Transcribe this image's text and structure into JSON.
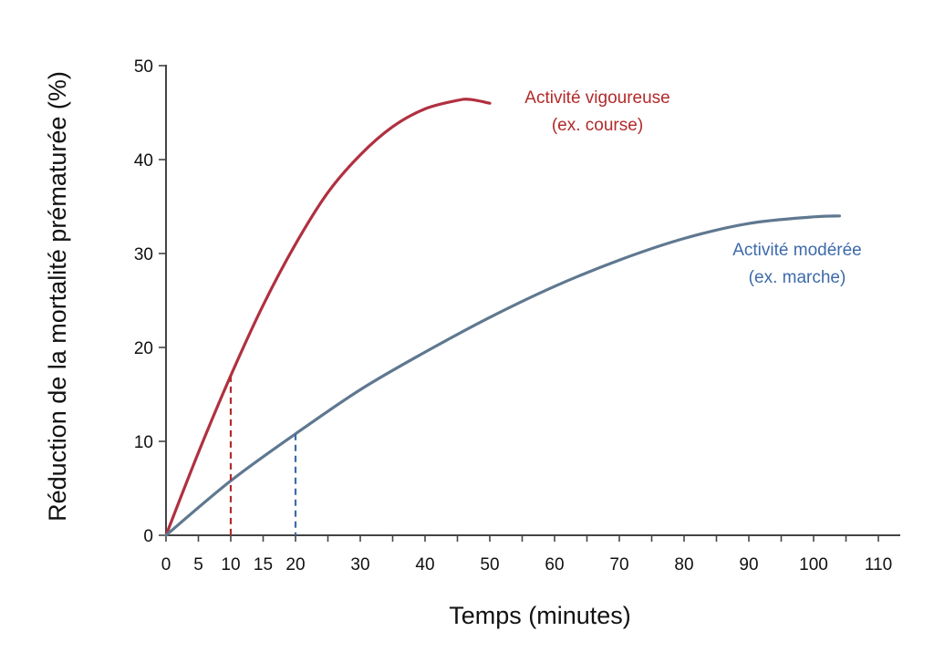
{
  "chart_data": {
    "type": "line",
    "title": "",
    "xlabel": "Temps (minutes)",
    "ylabel": "Réduction de la mortalité prématurée (%)",
    "xlim": [
      0,
      110
    ],
    "ylim": [
      0,
      50
    ],
    "grid": false,
    "x_ticks": [
      0,
      5,
      10,
      15,
      20,
      25,
      30,
      35,
      40,
      45,
      50,
      55,
      60,
      65,
      70,
      75,
      80,
      85,
      90,
      95,
      100,
      105,
      110
    ],
    "x_tick_labels": [
      {
        "value": 0,
        "label": "0"
      },
      {
        "value": 5,
        "label": "5"
      },
      {
        "value": 10,
        "label": "10"
      },
      {
        "value": 15,
        "label": "15"
      },
      {
        "value": 20,
        "label": "20"
      },
      {
        "value": 30,
        "label": "30"
      },
      {
        "value": 40,
        "label": "40"
      },
      {
        "value": 50,
        "label": "50"
      },
      {
        "value": 60,
        "label": "60"
      },
      {
        "value": 70,
        "label": "70"
      },
      {
        "value": 80,
        "label": "80"
      },
      {
        "value": 90,
        "label": "90"
      },
      {
        "value": 100,
        "label": "100"
      },
      {
        "value": 110,
        "label": "110"
      }
    ],
    "y_ticks": [
      {
        "value": 0,
        "label": "0"
      },
      {
        "value": 10,
        "label": "10"
      },
      {
        "value": 20,
        "label": "20"
      },
      {
        "value": 30,
        "label": "30"
      },
      {
        "value": 40,
        "label": "40"
      },
      {
        "value": 50,
        "label": "50"
      }
    ],
    "series": [
      {
        "name": "vigorous",
        "label_line1": "Activité vigoureuse",
        "label_line2": "(ex. course)",
        "color": "#b03040",
        "label_color": "#b22a2a",
        "x": [
          0,
          5,
          10,
          15,
          20,
          25,
          30,
          35,
          40,
          45,
          47,
          50
        ],
        "y": [
          0,
          8.8,
          17,
          24.5,
          31,
          36.5,
          40.5,
          43.5,
          45.4,
          46.3,
          46.4,
          46.0
        ],
        "marker": {
          "x": 10,
          "y": 17,
          "color": "#b22a2a"
        }
      },
      {
        "name": "moderate",
        "label_line1": "Activité modérée",
        "label_line2": "(ex. marche)",
        "color": "#5f7890",
        "label_color": "#3d6aaa",
        "x": [
          0,
          10,
          20,
          30,
          40,
          50,
          60,
          70,
          80,
          90,
          100,
          104
        ],
        "y": [
          0,
          5.8,
          10.8,
          15.5,
          19.5,
          23.2,
          26.5,
          29.3,
          31.6,
          33.2,
          33.9,
          34.0
        ],
        "marker": {
          "x": 20,
          "y": 10.8,
          "color": "#3d6aaa"
        }
      }
    ]
  }
}
